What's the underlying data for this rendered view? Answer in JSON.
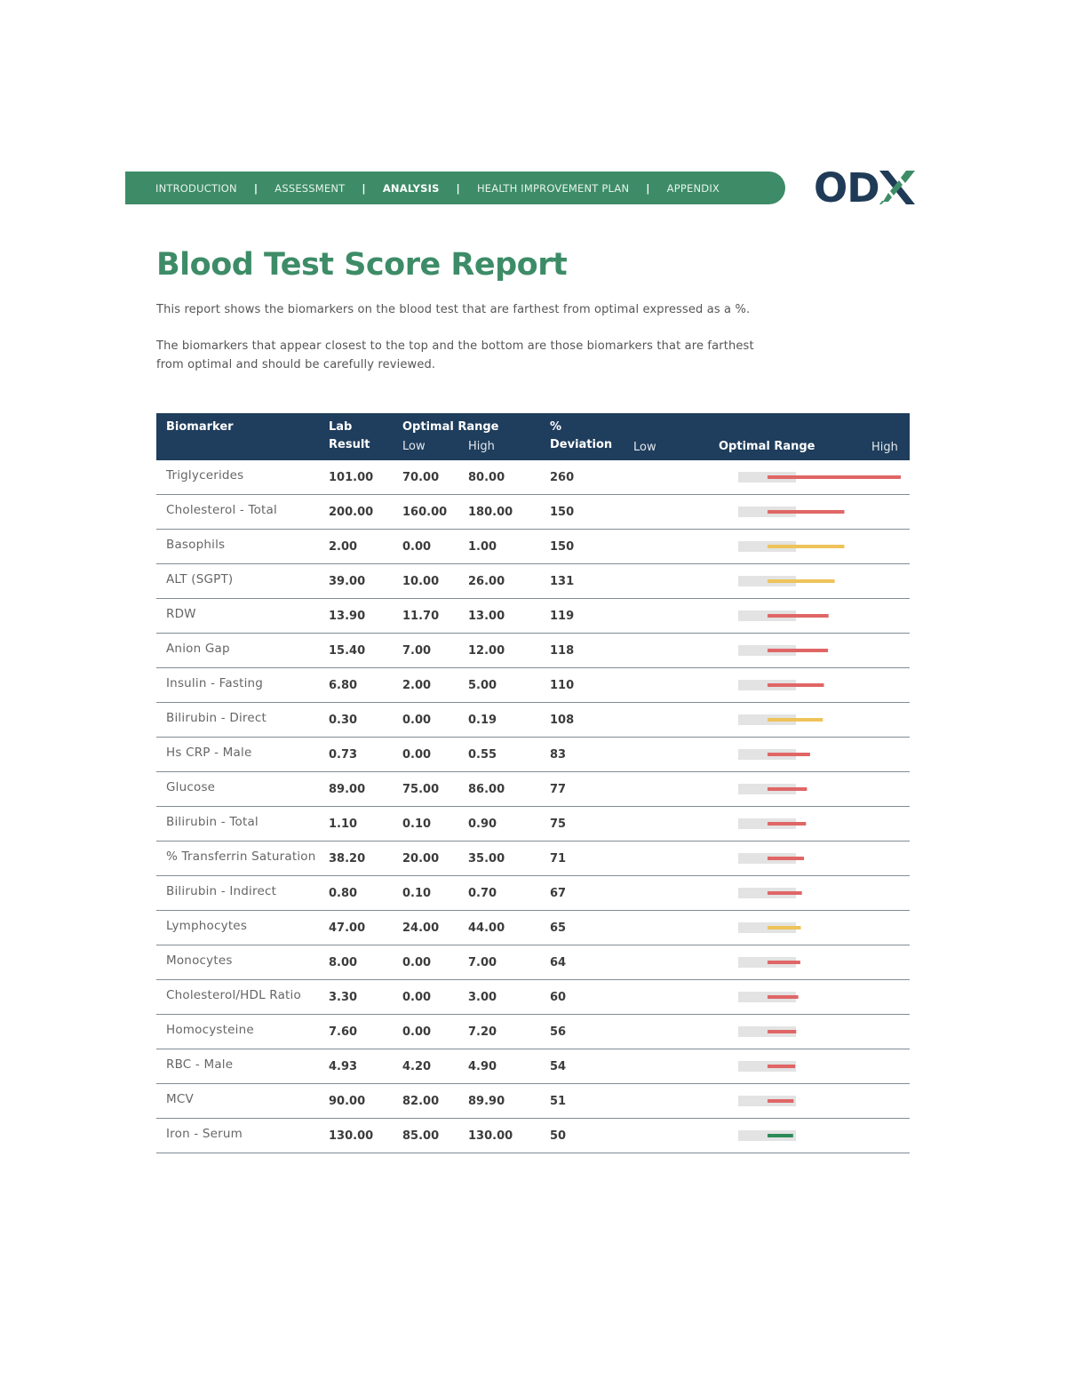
{
  "nav": {
    "items": [
      "INTRODUCTION",
      "ASSESSMENT",
      "ANALYSIS",
      "HEALTH IMPROVEMENT PLAN",
      "APPENDIX"
    ],
    "active": "ANALYSIS",
    "separator": "|"
  },
  "logo": {
    "text": "OD",
    "mark_icon": "x-stripes-icon"
  },
  "title": "Blood Test Score Report",
  "intro": {
    "p1": "This report shows the biomarkers on the blood test that are farthest from optimal expressed as a %.",
    "p2": "The biomarkers that appear closest to the top and the bottom are those biomarkers that are farthest from optimal and should be carefully reviewed."
  },
  "table": {
    "headers": {
      "biomarker": "Biomarker",
      "lab": "Lab",
      "result": "Result",
      "optimal_range": "Optimal Range",
      "low": "Low",
      "high": "High",
      "pct": "%",
      "deviation": "Deviation",
      "chart_low": "Low",
      "chart_range": "Optimal Range",
      "chart_high": "High"
    },
    "rows": [
      {
        "name": "Triglycerides",
        "result": "101.00",
        "low": "70.00",
        "high": "80.00",
        "deviation": "260",
        "status": "red"
      },
      {
        "name": "Cholesterol - Total",
        "result": "200.00",
        "low": "160.00",
        "high": "180.00",
        "deviation": "150",
        "status": "red"
      },
      {
        "name": "Basophils",
        "result": "2.00",
        "low": "0.00",
        "high": "1.00",
        "deviation": "150",
        "status": "yellow"
      },
      {
        "name": "ALT (SGPT)",
        "result": "39.00",
        "low": "10.00",
        "high": "26.00",
        "deviation": "131",
        "status": "yellow"
      },
      {
        "name": "RDW",
        "result": "13.90",
        "low": "11.70",
        "high": "13.00",
        "deviation": "119",
        "status": "red"
      },
      {
        "name": "Anion Gap",
        "result": "15.40",
        "low": "7.00",
        "high": "12.00",
        "deviation": "118",
        "status": "red"
      },
      {
        "name": "Insulin - Fasting",
        "result": "6.80",
        "low": "2.00",
        "high": "5.00",
        "deviation": "110",
        "status": "red"
      },
      {
        "name": "Bilirubin - Direct",
        "result": "0.30",
        "low": "0.00",
        "high": "0.19",
        "deviation": "108",
        "status": "yellow"
      },
      {
        "name": "Hs CRP - Male",
        "result": "0.73",
        "low": "0.00",
        "high": "0.55",
        "deviation": "83",
        "status": "red"
      },
      {
        "name": "Glucose",
        "result": "89.00",
        "low": "75.00",
        "high": "86.00",
        "deviation": "77",
        "status": "red"
      },
      {
        "name": "Bilirubin - Total",
        "result": "1.10",
        "low": "0.10",
        "high": "0.90",
        "deviation": "75",
        "status": "red"
      },
      {
        "name": "% Transferrin Saturation",
        "result": "38.20",
        "low": "20.00",
        "high": "35.00",
        "deviation": "71",
        "status": "red"
      },
      {
        "name": "Bilirubin - Indirect",
        "result": "0.80",
        "low": "0.10",
        "high": "0.70",
        "deviation": "67",
        "status": "red"
      },
      {
        "name": "Lymphocytes",
        "result": "47.00",
        "low": "24.00",
        "high": "44.00",
        "deviation": "65",
        "status": "yellow"
      },
      {
        "name": "Monocytes",
        "result": "8.00",
        "low": "0.00",
        "high": "7.00",
        "deviation": "64",
        "status": "red"
      },
      {
        "name": "Cholesterol/HDL Ratio",
        "result": "3.30",
        "low": "0.00",
        "high": "3.00",
        "deviation": "60",
        "status": "red"
      },
      {
        "name": "Homocysteine",
        "result": "7.60",
        "low": "0.00",
        "high": "7.20",
        "deviation": "56",
        "status": "red"
      },
      {
        "name": "RBC - Male",
        "result": "4.93",
        "low": "4.20",
        "high": "4.90",
        "deviation": "54",
        "status": "red"
      },
      {
        "name": "MCV",
        "result": "90.00",
        "low": "82.00",
        "high": "89.90",
        "deviation": "51",
        "status": "red"
      },
      {
        "name": "Iron - Serum",
        "result": "130.00",
        "low": "85.00",
        "high": "130.00",
        "deviation": "50",
        "status": "green"
      }
    ]
  },
  "colors": {
    "brand_green": "#3d8c67",
    "header_navy": "#1f3d5c",
    "red": "#e06666",
    "yellow": "#eec35a",
    "green": "#2e8a57",
    "range_gray": "#e3e3e3"
  }
}
